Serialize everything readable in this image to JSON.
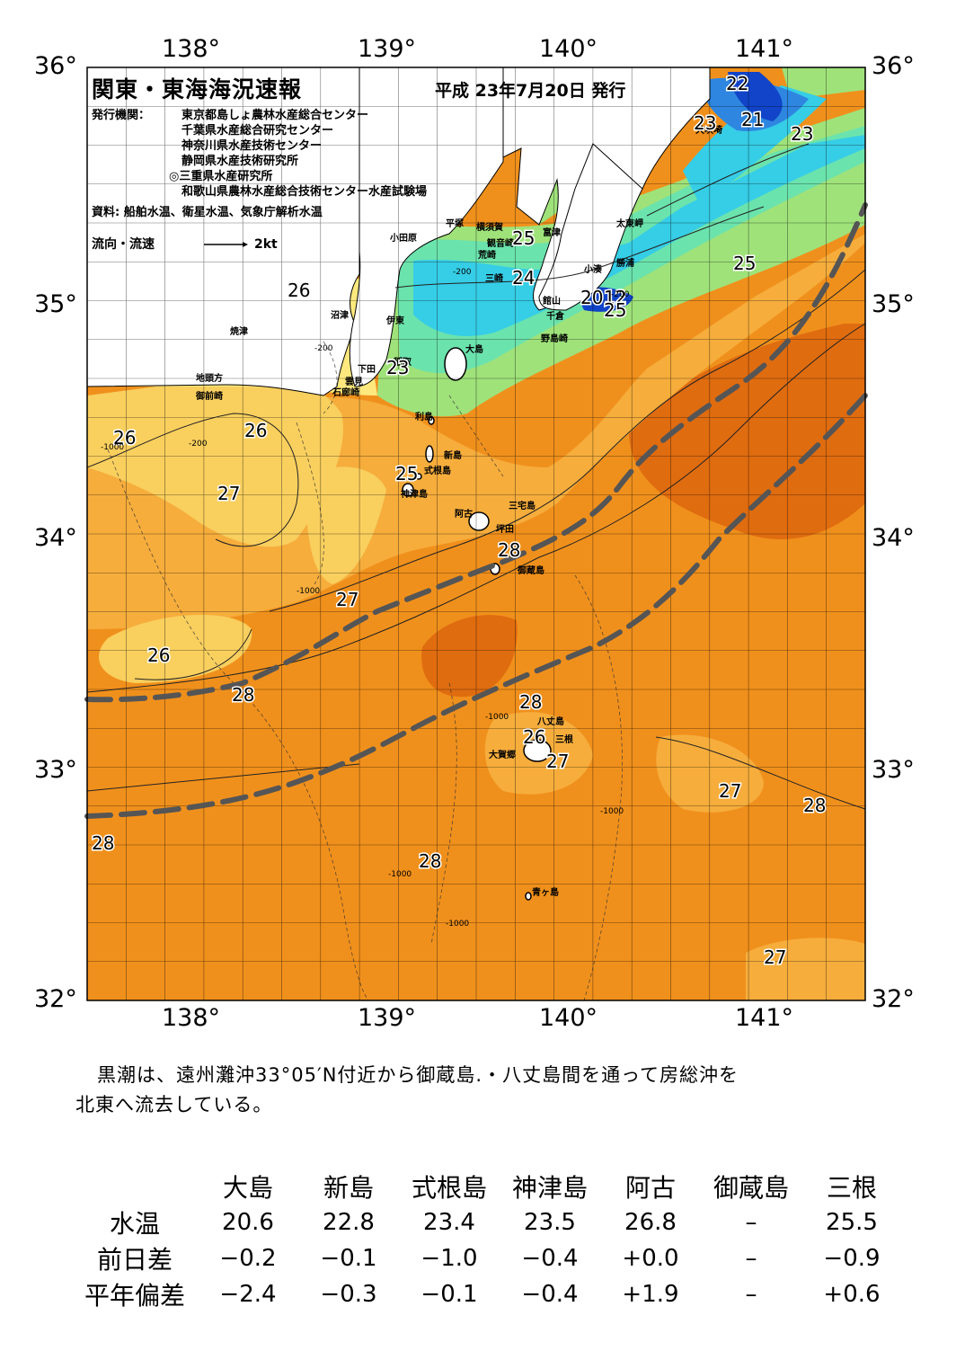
{
  "map": {
    "title": "関東・東海海況速報",
    "issued": "平成 23年7月20日 発行",
    "publisher_label": "発行機関：",
    "publishers": [
      "東京都島しょ農林水産総合センター",
      "千葉県水産総合研究センター",
      "神奈川県水産技術センター",
      "静岡県水産技術研究所",
      "◎三重県水産研究所",
      "和歌山県農林水産総合技術センター水産試験場"
    ],
    "source": "資料: 船舶水温、衛星水温、気象庁解析水温",
    "current_legend": "流向・流速",
    "current_scale": "2kt",
    "lon_labels": [
      "138°",
      "139°",
      "140°",
      "141°"
    ],
    "lat_labels": [
      "36°",
      "35°",
      "34°",
      "33°",
      "32°"
    ],
    "colors": {
      "sea_28": "#f0901c",
      "sea_29": "#e06c10",
      "sea_27": "#f6ad3c",
      "sea_26": "#f9cf5e",
      "sea_25": "#ffe97e",
      "sea_24": "#9fe27a",
      "sea_23": "#6be3ad",
      "sea_22": "#36cde6",
      "sea_21": "#2e86e0",
      "sea_20": "#1144c8",
      "land": "#ffffff",
      "kuroshio": "#555555"
    },
    "place_names": [
      "小田原",
      "平塚",
      "横須賀",
      "富津",
      "観音崎",
      "荒崎",
      "三崎",
      "太東岬",
      "勝浦",
      "小湊",
      "館山",
      "千倉",
      "野島崎",
      "大島",
      "利島",
      "新島",
      "式根島",
      "神津島",
      "三宅島",
      "阿古",
      "坪田",
      "御蔵島",
      "沼津",
      "伊東",
      "焼津",
      "稲取",
      "下田",
      "雲見",
      "石廊崎",
      "地頭方",
      "御前崎",
      "犬吠埼",
      "八丈島",
      "三根",
      "大賀郷",
      "青ヶ島"
    ],
    "temperature_labels": [
      "22",
      "21",
      "23",
      "23",
      "25",
      "25",
      "24",
      "20",
      "12",
      "25",
      "26",
      "23",
      "26",
      "26",
      "25",
      "27",
      "28",
      "27",
      "26",
      "28",
      "28",
      "26",
      "27",
      "27",
      "28",
      "28",
      "28",
      "27"
    ],
    "depth_labels": [
      "-1000",
      "-200"
    ]
  },
  "summary": {
    "line1": "黒潮は、遠州灘沖33°05′N付近から御蔵島.・八丈島間を通って房総沖を",
    "line2": "北東へ流去している。"
  },
  "stats": {
    "stations": [
      "大島",
      "新島",
      "式根島",
      "神津島",
      "阿古",
      "御蔵島",
      "三根"
    ],
    "rows": [
      {
        "label": "水温",
        "values": [
          "20.6",
          "22.8",
          "23.4",
          "23.5",
          "26.8",
          "–",
          "25.5"
        ]
      },
      {
        "label": "前日差",
        "values": [
          "−0.2",
          "−0.1",
          "−1.0",
          "−0.4",
          "+0.0",
          "–",
          "−0.9"
        ]
      },
      {
        "label": "平年偏差",
        "values": [
          "−2.4",
          "−0.3",
          "−0.1",
          "−0.4",
          "+1.9",
          "–",
          "+0.6"
        ]
      }
    ]
  }
}
